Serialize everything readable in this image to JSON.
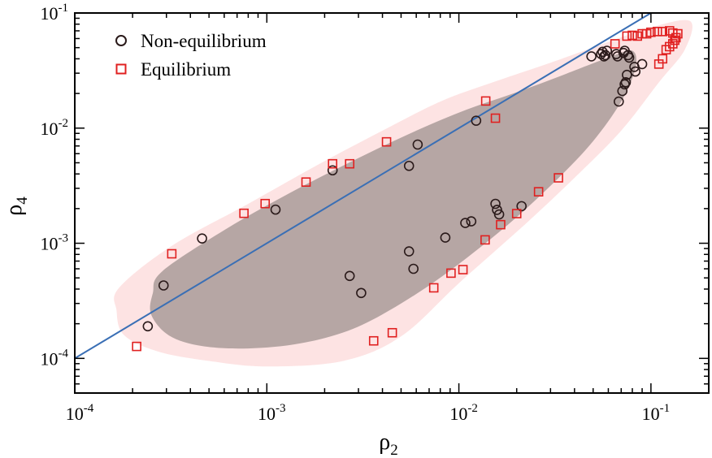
{
  "chart_data": {
    "type": "scatter",
    "title": "",
    "xlabel": "ρ",
    "xlabel_sub": "2",
    "ylabel": "ρ",
    "ylabel_sub": "4",
    "x_scale": "log",
    "y_scale": "log",
    "xlim": [
      0.0001,
      0.2
    ],
    "ylim": [
      5e-05,
      0.1
    ],
    "grid": false,
    "legend_position": "top-left",
    "x_ticks": [
      {
        "value": 0.0001,
        "base": "10",
        "exp": "-4"
      },
      {
        "value": 0.001,
        "base": "10",
        "exp": "-3"
      },
      {
        "value": 0.01,
        "base": "10",
        "exp": "-2"
      },
      {
        "value": 0.1,
        "base": "10",
        "exp": "-1"
      }
    ],
    "y_ticks": [
      {
        "value": 0.0001,
        "base": "10",
        "exp": "-4"
      },
      {
        "value": 0.001,
        "base": "10",
        "exp": "-3"
      },
      {
        "value": 0.01,
        "base": "10",
        "exp": "-2"
      },
      {
        "value": 0.1,
        "base": "10",
        "exp": "-1"
      }
    ],
    "reference_line": {
      "type": "y=x",
      "color": "#3a6fb5"
    },
    "bands": [
      {
        "region": "outer",
        "color": "#fde3e3"
      },
      {
        "region": "inner",
        "color": "#b6a6a4"
      }
    ],
    "series": [
      {
        "name": "Non-equilibrium",
        "marker": "circle",
        "color": "#2a1a1a",
        "points": [
          [
            0.00024,
            0.00019
          ],
          [
            0.00029,
            0.00043
          ],
          [
            0.00046,
            0.0011
          ],
          [
            0.00111,
            0.00196
          ],
          [
            0.0022,
            0.0043
          ],
          [
            0.0027,
            0.00052
          ],
          [
            0.0031,
            0.00037
          ],
          [
            0.0055,
            0.0047
          ],
          [
            0.0055,
            0.00085
          ],
          [
            0.0058,
            0.0006
          ],
          [
            0.0061,
            0.0072
          ],
          [
            0.0085,
            0.00112
          ],
          [
            0.0108,
            0.0015
          ],
          [
            0.0116,
            0.00155
          ],
          [
            0.0123,
            0.0116
          ],
          [
            0.0155,
            0.0022
          ],
          [
            0.0158,
            0.00195
          ],
          [
            0.0162,
            0.00178
          ],
          [
            0.0212,
            0.0021
          ],
          [
            0.049,
            0.042
          ],
          [
            0.055,
            0.044
          ],
          [
            0.056,
            0.046
          ],
          [
            0.057,
            0.042
          ],
          [
            0.058,
            0.043
          ],
          [
            0.059,
            0.047
          ],
          [
            0.066,
            0.044
          ],
          [
            0.067,
            0.042
          ],
          [
            0.068,
            0.017
          ],
          [
            0.071,
            0.021
          ],
          [
            0.072,
            0.045
          ],
          [
            0.073,
            0.047
          ],
          [
            0.073,
            0.024
          ],
          [
            0.074,
            0.025
          ],
          [
            0.075,
            0.029
          ],
          [
            0.076,
            0.043
          ],
          [
            0.077,
            0.041
          ],
          [
            0.082,
            0.034
          ],
          [
            0.083,
            0.031
          ],
          [
            0.09,
            0.036
          ]
        ]
      },
      {
        "name": "Equilibrium",
        "marker": "square",
        "color": "#e02020",
        "points": [
          [
            0.00021,
            0.000127
          ],
          [
            0.00032,
            0.00081
          ],
          [
            0.00076,
            0.00182
          ],
          [
            0.00098,
            0.00221
          ],
          [
            0.0016,
            0.0034
          ],
          [
            0.0022,
            0.0049
          ],
          [
            0.0027,
            0.0049
          ],
          [
            0.0036,
            0.000142
          ],
          [
            0.0042,
            0.0076
          ],
          [
            0.0045,
            0.000167
          ],
          [
            0.0074,
            0.00041
          ],
          [
            0.0091,
            0.00055
          ],
          [
            0.0105,
            0.00059
          ],
          [
            0.0137,
            0.00107
          ],
          [
            0.0138,
            0.0172
          ],
          [
            0.0155,
            0.0122
          ],
          [
            0.0165,
            0.00145
          ],
          [
            0.02,
            0.00181
          ],
          [
            0.026,
            0.0028
          ],
          [
            0.033,
            0.0037
          ],
          [
            0.065,
            0.054
          ],
          [
            0.075,
            0.063
          ],
          [
            0.08,
            0.064
          ],
          [
            0.085,
            0.063
          ],
          [
            0.09,
            0.066
          ],
          [
            0.095,
            0.066
          ],
          [
            0.1,
            0.068
          ],
          [
            0.108,
            0.069
          ],
          [
            0.115,
            0.069
          ],
          [
            0.125,
            0.07
          ],
          [
            0.13,
            0.067
          ],
          [
            0.11,
            0.036
          ],
          [
            0.115,
            0.04
          ],
          [
            0.12,
            0.048
          ],
          [
            0.125,
            0.051
          ],
          [
            0.13,
            0.054
          ],
          [
            0.133,
            0.058
          ],
          [
            0.135,
            0.061
          ],
          [
            0.138,
            0.066
          ]
        ]
      }
    ]
  }
}
